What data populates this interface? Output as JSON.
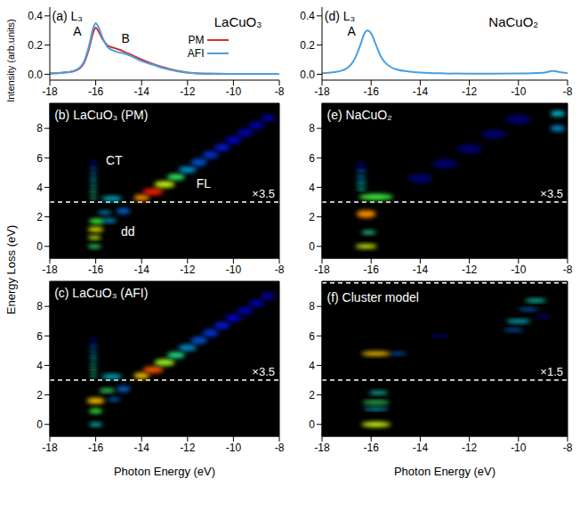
{
  "chart_data": [
    {
      "type": "line",
      "title": "(a) L₃",
      "subtitle": "LaCuO₃",
      "y_label": "Intensity (arb.units)",
      "legend": "right",
      "x": [
        -18,
        -17.5,
        -17,
        -16.7,
        -16.5,
        -16.3,
        -16.1,
        -16.0,
        -15.9,
        -15.7,
        -15.5,
        -15.2,
        -15.0,
        -14.7,
        -14.4,
        -14.0,
        -13.5,
        -13.0,
        -12.5,
        -12.0,
        -11.0,
        -10.0,
        -9.0,
        -8.0
      ],
      "series": [
        {
          "name": "PM",
          "color": "#d0312d",
          "values": [
            0.005,
            0.01,
            0.02,
            0.04,
            0.08,
            0.17,
            0.29,
            0.32,
            0.3,
            0.24,
            0.2,
            0.18,
            0.17,
            0.15,
            0.13,
            0.1,
            0.07,
            0.045,
            0.025,
            0.012,
            0.004,
            0.003,
            0.003,
            0.003
          ]
        },
        {
          "name": "AFI",
          "color": "#4a9ee0",
          "values": [
            0.005,
            0.01,
            0.02,
            0.045,
            0.09,
            0.19,
            0.32,
            0.35,
            0.33,
            0.25,
            0.19,
            0.16,
            0.15,
            0.14,
            0.12,
            0.09,
            0.065,
            0.04,
            0.022,
            0.01,
            0.004,
            0.003,
            0.003,
            0.003
          ]
        }
      ],
      "annotations": [
        "A",
        "B"
      ],
      "xlim": [
        -18,
        -8
      ],
      "xticks": [
        -18,
        -16,
        -14,
        -12,
        -10,
        -8
      ],
      "ylim": [
        -0.04,
        0.46
      ],
      "yticks": [
        {
          "value": 0,
          "label": "0.0"
        },
        {
          "value": 0.2,
          "label": "0.2"
        },
        {
          "value": 0.4,
          "label": "0.4"
        }
      ]
    },
    {
      "type": "heatmap",
      "title": "(b) LaCuO₃ (PM)",
      "y_label": "Energy Loss (eV)",
      "xlim": [
        -18,
        -8
      ],
      "xticks": [
        -18,
        -16,
        -14,
        -12,
        -10,
        -8
      ],
      "ylim": [
        -0.8,
        9.7
      ],
      "yticks": [
        0,
        2,
        4,
        6,
        8
      ],
      "scale_boundaries": [
        3
      ],
      "scale_label": "×3.5",
      "annotations": [
        "CT",
        "FL",
        "dd"
      ],
      "spots": [
        {
          "x": -16.05,
          "y": 0.0,
          "x_width": 0.3,
          "y_width": 0.12,
          "intensity": 0.55
        },
        {
          "x": -16.05,
          "y": 0.6,
          "x_width": 0.3,
          "y_width": 0.13,
          "intensity": 0.75
        },
        {
          "x": -16.0,
          "y": 1.15,
          "x_width": 0.35,
          "y_width": 0.15,
          "intensity": 0.8
        },
        {
          "x": -15.95,
          "y": 1.7,
          "x_width": 0.35,
          "y_width": 0.17,
          "intensity": 0.6
        },
        {
          "x": -15.4,
          "y": 1.75,
          "x_width": 0.3,
          "y_width": 0.14,
          "intensity": 0.35
        },
        {
          "x": -15.6,
          "y": 2.3,
          "x_width": 0.3,
          "y_width": 0.12,
          "intensity": 0.35
        },
        {
          "x": -16.1,
          "y": 3.3,
          "x_width": 0.15,
          "y_width": 0.1,
          "intensity": 0.5
        },
        {
          "x": -16.1,
          "y": 3.7,
          "x_width": 0.15,
          "y_width": 0.1,
          "intensity": 0.5
        },
        {
          "x": -16.1,
          "y": 4.1,
          "x_width": 0.15,
          "y_width": 0.1,
          "intensity": 0.45
        },
        {
          "x": -16.1,
          "y": 4.5,
          "x_width": 0.15,
          "y_width": 0.1,
          "intensity": 0.4
        },
        {
          "x": -16.1,
          "y": 4.9,
          "x_width": 0.15,
          "y_width": 0.1,
          "intensity": 0.35
        },
        {
          "x": -16.1,
          "y": 5.3,
          "x_width": 0.15,
          "y_width": 0.1,
          "intensity": 0.3
        },
        {
          "x": -16.1,
          "y": 5.7,
          "x_width": 0.15,
          "y_width": 0.1,
          "intensity": 0.2
        },
        {
          "x": -15.3,
          "y": 3.25,
          "x_width": 0.45,
          "y_width": 0.15,
          "intensity": 0.4
        },
        {
          "x": -14.8,
          "y": 2.4,
          "x_width": 0.3,
          "y_width": 0.2,
          "intensity": 0.3
        },
        {
          "x": -14.0,
          "y": 3.3,
          "x_width": 0.35,
          "y_width": 0.2,
          "intensity": 0.9
        },
        {
          "x": -13.5,
          "y": 3.7,
          "x_width": 0.45,
          "y_width": 0.22,
          "intensity": 1.0
        },
        {
          "x": -13.0,
          "y": 4.2,
          "x_width": 0.45,
          "y_width": 0.22,
          "intensity": 0.75
        },
        {
          "x": -12.5,
          "y": 4.7,
          "x_width": 0.4,
          "y_width": 0.2,
          "intensity": 0.55
        },
        {
          "x": -12.0,
          "y": 5.2,
          "x_width": 0.4,
          "y_width": 0.2,
          "intensity": 0.35
        },
        {
          "x": -11.5,
          "y": 5.7,
          "x_width": 0.35,
          "y_width": 0.25,
          "intensity": 0.28
        },
        {
          "x": -11.0,
          "y": 6.2,
          "x_width": 0.35,
          "y_width": 0.25,
          "intensity": 0.25
        },
        {
          "x": -10.5,
          "y": 6.7,
          "x_width": 0.35,
          "y_width": 0.25,
          "intensity": 0.22
        },
        {
          "x": -10.0,
          "y": 7.2,
          "x_width": 0.35,
          "y_width": 0.25,
          "intensity": 0.2
        },
        {
          "x": -9.5,
          "y": 7.7,
          "x_width": 0.35,
          "y_width": 0.25,
          "intensity": 0.18
        },
        {
          "x": -9.0,
          "y": 8.2,
          "x_width": 0.35,
          "y_width": 0.25,
          "intensity": 0.17
        },
        {
          "x": -8.5,
          "y": 8.7,
          "x_width": 0.3,
          "y_width": 0.25,
          "intensity": 0.15
        }
      ]
    },
    {
      "type": "heatmap",
      "title": "(c) LaCuO₃ (AFI)",
      "x_label": "Photon Energy (eV)",
      "xlim": [
        -18,
        -8
      ],
      "xticks": [
        -18,
        -16,
        -14,
        -12,
        -10,
        -8
      ],
      "ylim": [
        -0.8,
        9.7
      ],
      "yticks": [
        0,
        2,
        4,
        6,
        8
      ],
      "scale_boundaries": [
        3
      ],
      "scale_label": "×3.5",
      "spots": [
        {
          "x": -16.0,
          "y": 0.0,
          "x_width": 0.3,
          "y_width": 0.12,
          "intensity": 0.45
        },
        {
          "x": -16.0,
          "y": 0.9,
          "x_width": 0.3,
          "y_width": 0.15,
          "intensity": 0.6
        },
        {
          "x": -16.0,
          "y": 1.6,
          "x_width": 0.4,
          "y_width": 0.2,
          "intensity": 0.85
        },
        {
          "x": -15.5,
          "y": 2.3,
          "x_width": 0.35,
          "y_width": 0.13,
          "intensity": 0.55
        },
        {
          "x": -15.2,
          "y": 1.7,
          "x_width": 0.3,
          "y_width": 0.12,
          "intensity": 0.3
        },
        {
          "x": -16.1,
          "y": 3.3,
          "x_width": 0.15,
          "y_width": 0.1,
          "intensity": 0.5
        },
        {
          "x": -16.1,
          "y": 3.7,
          "x_width": 0.15,
          "y_width": 0.1,
          "intensity": 0.5
        },
        {
          "x": -16.1,
          "y": 4.1,
          "x_width": 0.15,
          "y_width": 0.1,
          "intensity": 0.45
        },
        {
          "x": -16.1,
          "y": 4.5,
          "x_width": 0.15,
          "y_width": 0.1,
          "intensity": 0.4
        },
        {
          "x": -16.1,
          "y": 4.9,
          "x_width": 0.15,
          "y_width": 0.1,
          "intensity": 0.35
        },
        {
          "x": -16.1,
          "y": 5.3,
          "x_width": 0.15,
          "y_width": 0.1,
          "intensity": 0.3
        },
        {
          "x": -16.1,
          "y": 5.7,
          "x_width": 0.15,
          "y_width": 0.1,
          "intensity": 0.2
        },
        {
          "x": -15.3,
          "y": 3.25,
          "x_width": 0.45,
          "y_width": 0.15,
          "intensity": 0.4
        },
        {
          "x": -14.8,
          "y": 2.4,
          "x_width": 0.3,
          "y_width": 0.2,
          "intensity": 0.3
        },
        {
          "x": -14.0,
          "y": 3.3,
          "x_width": 0.35,
          "y_width": 0.2,
          "intensity": 0.85
        },
        {
          "x": -13.5,
          "y": 3.7,
          "x_width": 0.45,
          "y_width": 0.22,
          "intensity": 0.95
        },
        {
          "x": -13.0,
          "y": 4.2,
          "x_width": 0.45,
          "y_width": 0.22,
          "intensity": 0.7
        },
        {
          "x": -12.5,
          "y": 4.7,
          "x_width": 0.4,
          "y_width": 0.2,
          "intensity": 0.5
        },
        {
          "x": -12.0,
          "y": 5.2,
          "x_width": 0.4,
          "y_width": 0.2,
          "intensity": 0.35
        },
        {
          "x": -11.5,
          "y": 5.7,
          "x_width": 0.35,
          "y_width": 0.25,
          "intensity": 0.28
        },
        {
          "x": -11.0,
          "y": 6.2,
          "x_width": 0.35,
          "y_width": 0.25,
          "intensity": 0.25
        },
        {
          "x": -10.5,
          "y": 6.7,
          "x_width": 0.35,
          "y_width": 0.25,
          "intensity": 0.22
        },
        {
          "x": -10.0,
          "y": 7.2,
          "x_width": 0.35,
          "y_width": 0.25,
          "intensity": 0.2
        },
        {
          "x": -9.5,
          "y": 7.7,
          "x_width": 0.35,
          "y_width": 0.25,
          "intensity": 0.18
        },
        {
          "x": -9.0,
          "y": 8.2,
          "x_width": 0.35,
          "y_width": 0.25,
          "intensity": 0.17
        },
        {
          "x": -8.5,
          "y": 8.7,
          "x_width": 0.3,
          "y_width": 0.25,
          "intensity": 0.15
        }
      ]
    },
    {
      "type": "line",
      "title": "(d) L₃",
      "subtitle": "NaCuO₂",
      "annotations": [
        "A"
      ],
      "x": [
        -18,
        -17.5,
        -17.2,
        -17,
        -16.8,
        -16.6,
        -16.4,
        -16.3,
        -16.15,
        -16.0,
        -15.8,
        -15.6,
        -15.4,
        -15.2,
        -15,
        -14.5,
        -14,
        -13,
        -12,
        -11,
        -10,
        -9,
        -8.6,
        -8.2,
        -8
      ],
      "series": [
        {
          "color": "#4a9ee0",
          "values": [
            0.008,
            0.015,
            0.025,
            0.04,
            0.07,
            0.13,
            0.22,
            0.27,
            0.3,
            0.28,
            0.2,
            0.12,
            0.075,
            0.05,
            0.035,
            0.02,
            0.012,
            0.006,
            0.004,
            0.004,
            0.005,
            0.01,
            0.022,
            0.012,
            0.008
          ]
        }
      ],
      "xlim": [
        -18,
        -8
      ],
      "xticks": [
        -18,
        -16,
        -14,
        -12,
        -10,
        -8
      ],
      "ylim": [
        -0.04,
        0.46
      ],
      "yticks": [
        {
          "value": 0,
          "label": "0.0"
        },
        {
          "value": 0.2,
          "label": "0.2"
        },
        {
          "value": 0.4,
          "label": "0.4"
        }
      ]
    },
    {
      "type": "heatmap",
      "title": "(e) NaCuO₂",
      "xlim": [
        -18,
        -8
      ],
      "xticks": [
        -18,
        -16,
        -14,
        -12,
        -10,
        -8
      ],
      "ylim": [
        -0.8,
        9.7
      ],
      "yticks": [
        0,
        2,
        4,
        6,
        8
      ],
      "scale_boundaries": [
        3
      ],
      "scale_label": "×3.5",
      "spots": [
        {
          "x": -16.2,
          "y": 0.0,
          "x_width": 0.45,
          "y_width": 0.15,
          "intensity": 0.75
        },
        {
          "x": -16.1,
          "y": 0.95,
          "x_width": 0.3,
          "y_width": 0.12,
          "intensity": 0.5
        },
        {
          "x": -16.2,
          "y": 2.2,
          "x_width": 0.4,
          "y_width": 0.25,
          "intensity": 0.9
        },
        {
          "x": -15.8,
          "y": 3.35,
          "x_width": 0.7,
          "y_width": 0.2,
          "intensity": 0.6
        },
        {
          "x": -16.4,
          "y": 3.9,
          "x_width": 0.2,
          "y_width": 0.1,
          "intensity": 0.45
        },
        {
          "x": -16.4,
          "y": 4.3,
          "x_width": 0.2,
          "y_width": 0.1,
          "intensity": 0.4
        },
        {
          "x": -16.4,
          "y": 4.7,
          "x_width": 0.2,
          "y_width": 0.1,
          "intensity": 0.35
        },
        {
          "x": -16.4,
          "y": 5.1,
          "x_width": 0.2,
          "y_width": 0.1,
          "intensity": 0.3
        },
        {
          "x": -16.4,
          "y": 5.5,
          "x_width": 0.2,
          "y_width": 0.1,
          "intensity": 0.2
        },
        {
          "x": -14.0,
          "y": 4.6,
          "x_width": 0.5,
          "y_width": 0.3,
          "intensity": 0.1
        },
        {
          "x": -13.0,
          "y": 5.6,
          "x_width": 0.5,
          "y_width": 0.3,
          "intensity": 0.1
        },
        {
          "x": -12.0,
          "y": 6.6,
          "x_width": 0.5,
          "y_width": 0.3,
          "intensity": 0.1
        },
        {
          "x": -11.0,
          "y": 7.6,
          "x_width": 0.5,
          "y_width": 0.3,
          "intensity": 0.1
        },
        {
          "x": -10.0,
          "y": 8.6,
          "x_width": 0.5,
          "y_width": 0.3,
          "intensity": 0.1
        },
        {
          "x": -8.4,
          "y": 8.0,
          "x_width": 0.3,
          "y_width": 0.18,
          "intensity": 0.35
        },
        {
          "x": -8.4,
          "y": 9.0,
          "x_width": 0.3,
          "y_width": 0.18,
          "intensity": 0.4
        }
      ]
    },
    {
      "type": "heatmap",
      "title": "(f) Cluster model",
      "x_label": "Photon Energy (eV)",
      "xlim": [
        -18,
        -8
      ],
      "xticks": [
        -18,
        -16,
        -14,
        -12,
        -10,
        -8
      ],
      "ylim": [
        -0.8,
        9.7
      ],
      "yticks": [
        0,
        2,
        4,
        6,
        8
      ],
      "scale_boundaries": [
        3,
        9.6
      ],
      "scale_label": "×1.5",
      "spots": [
        {
          "x": -15.8,
          "y": 0.0,
          "x_width": 0.6,
          "y_width": 0.18,
          "intensity": 0.75
        },
        {
          "x": -15.8,
          "y": 1.05,
          "x_width": 0.5,
          "y_width": 0.1,
          "intensity": 0.4
        },
        {
          "x": -15.8,
          "y": 1.5,
          "x_width": 0.55,
          "y_width": 0.12,
          "intensity": 0.55
        },
        {
          "x": -15.7,
          "y": 2.15,
          "x_width": 0.4,
          "y_width": 0.12,
          "intensity": 0.45
        },
        {
          "x": -15.8,
          "y": 4.8,
          "x_width": 0.6,
          "y_width": 0.15,
          "intensity": 0.85
        },
        {
          "x": -14.9,
          "y": 4.8,
          "x_width": 0.35,
          "y_width": 0.1,
          "intensity": 0.3
        },
        {
          "x": -13.2,
          "y": 6.0,
          "x_width": 0.4,
          "y_width": 0.08,
          "intensity": 0.2
        },
        {
          "x": -10.2,
          "y": 6.4,
          "x_width": 0.4,
          "y_width": 0.1,
          "intensity": 0.3
        },
        {
          "x": -10.0,
          "y": 7.0,
          "x_width": 0.5,
          "y_width": 0.12,
          "intensity": 0.4
        },
        {
          "x": -9.0,
          "y": 7.3,
          "x_width": 0.3,
          "y_width": 0.08,
          "intensity": 0.2
        },
        {
          "x": -9.6,
          "y": 7.8,
          "x_width": 0.4,
          "y_width": 0.1,
          "intensity": 0.3
        },
        {
          "x": -9.3,
          "y": 8.4,
          "x_width": 0.45,
          "y_width": 0.12,
          "intensity": 0.45
        }
      ]
    }
  ]
}
